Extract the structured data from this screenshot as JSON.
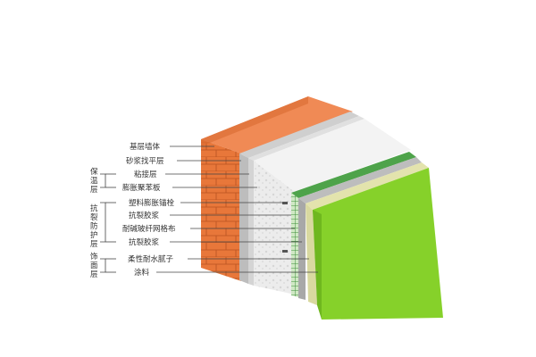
{
  "diagram": {
    "layers": [
      {
        "label": "基层墙体"
      },
      {
        "label": "砂浆找平层"
      },
      {
        "label": "粘接层"
      },
      {
        "label": "膨胀聚苯板"
      },
      {
        "label": "塑料膨胀锚栓"
      },
      {
        "label": "抗裂胶浆"
      },
      {
        "label": "耐碱玻纤网格布"
      },
      {
        "label": "抗裂胶浆"
      },
      {
        "label": "柔性耐水腻子"
      },
      {
        "label": "涂料"
      }
    ],
    "groups": [
      {
        "label": "保温层",
        "chars": [
          "保",
          "温",
          "层"
        ]
      },
      {
        "label": "抗裂防护层",
        "chars": [
          "抗",
          "裂",
          "防",
          "护",
          "层"
        ]
      },
      {
        "label": "饰面层",
        "chars": [
          "饰",
          "面",
          "层"
        ]
      }
    ],
    "colors": {
      "brick": "#e8773a",
      "brick_top": "#f08a55",
      "mortar": "#c9c9c9",
      "insulation": "#e9e9e9",
      "mesh": "#4ea34a",
      "putty": "#d9d9a0",
      "coating": "#86d12a"
    }
  }
}
